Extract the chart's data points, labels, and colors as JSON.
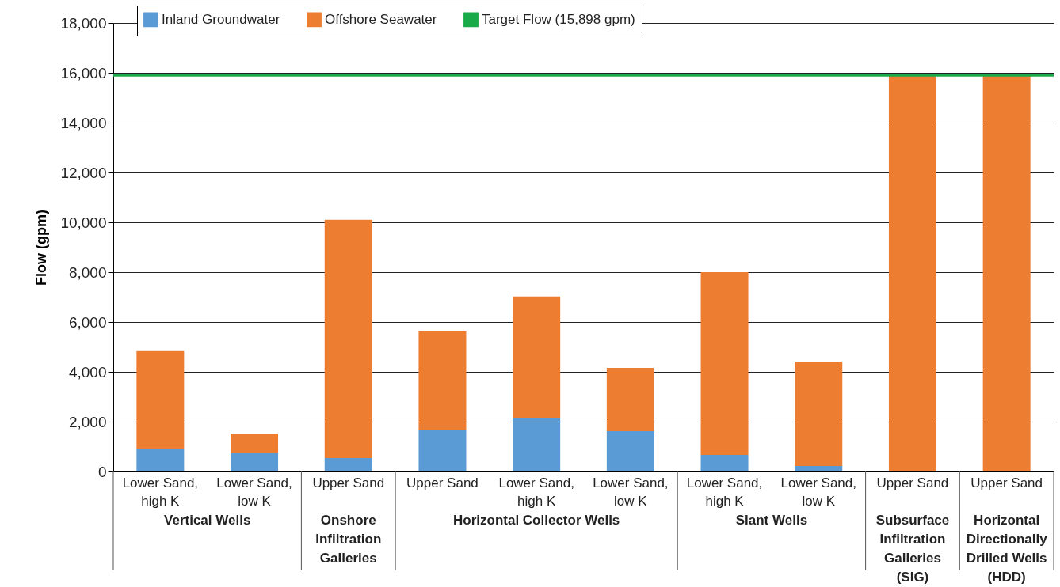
{
  "chart_data": {
    "type": "bar",
    "stacked": true,
    "ylabel": "Flow (gpm)",
    "categories": [
      "Lower Sand,\nhigh K",
      "Lower Sand,\nlow K",
      "Upper Sand",
      "Upper Sand",
      "Lower Sand,\nhigh K",
      "Lower Sand,\nlow K",
      "Lower Sand,\nhigh K",
      "Lower Sand,\nlow K",
      "Upper Sand",
      "Upper Sand"
    ],
    "series": [
      {
        "name": "Inland Groundwater",
        "color": "#5b9bd5",
        "values": [
          900,
          730,
          540,
          1680,
          2130,
          1620,
          670,
          220,
          0,
          0
        ]
      },
      {
        "name": "Offshore Seawater",
        "color": "#ed7d31",
        "values": [
          3930,
          790,
          9560,
          3940,
          4890,
          2540,
          7330,
          4190,
          15900,
          15900
        ]
      }
    ],
    "ref_lines": [
      {
        "axis": "y",
        "value": 15898,
        "label": "Target Flow (15,898 gpm)",
        "color": "#1aaa4a"
      }
    ],
    "ylim": [
      0,
      18000
    ],
    "yticks": [
      0,
      {
        "value": 2000,
        "label": "2,000"
      },
      {
        "value": 4000,
        "label": "4,000"
      },
      {
        "value": 6000,
        "label": "6,000"
      },
      {
        "value": 8000,
        "label": "8,000"
      },
      {
        "value": 10000,
        "label": "10,000"
      },
      {
        "value": 12000,
        "label": "12,000"
      },
      {
        "value": 14000,
        "label": "14,000"
      },
      {
        "value": 16000,
        "label": "16,000"
      },
      {
        "value": 18000,
        "label": "18,000"
      }
    ],
    "grid": "y",
    "legend": "top",
    "annotations": [
      "Vertical Wells",
      "Onshore\nInfiltration\nGalleries",
      "Horizontal Collector Wells",
      "Slant Wells",
      "Subsurface\nInfiltration\nGalleries\n(SIG)",
      "Horizontal\nDirectionally\nDrilled Wells\n(HDD)"
    ]
  }
}
